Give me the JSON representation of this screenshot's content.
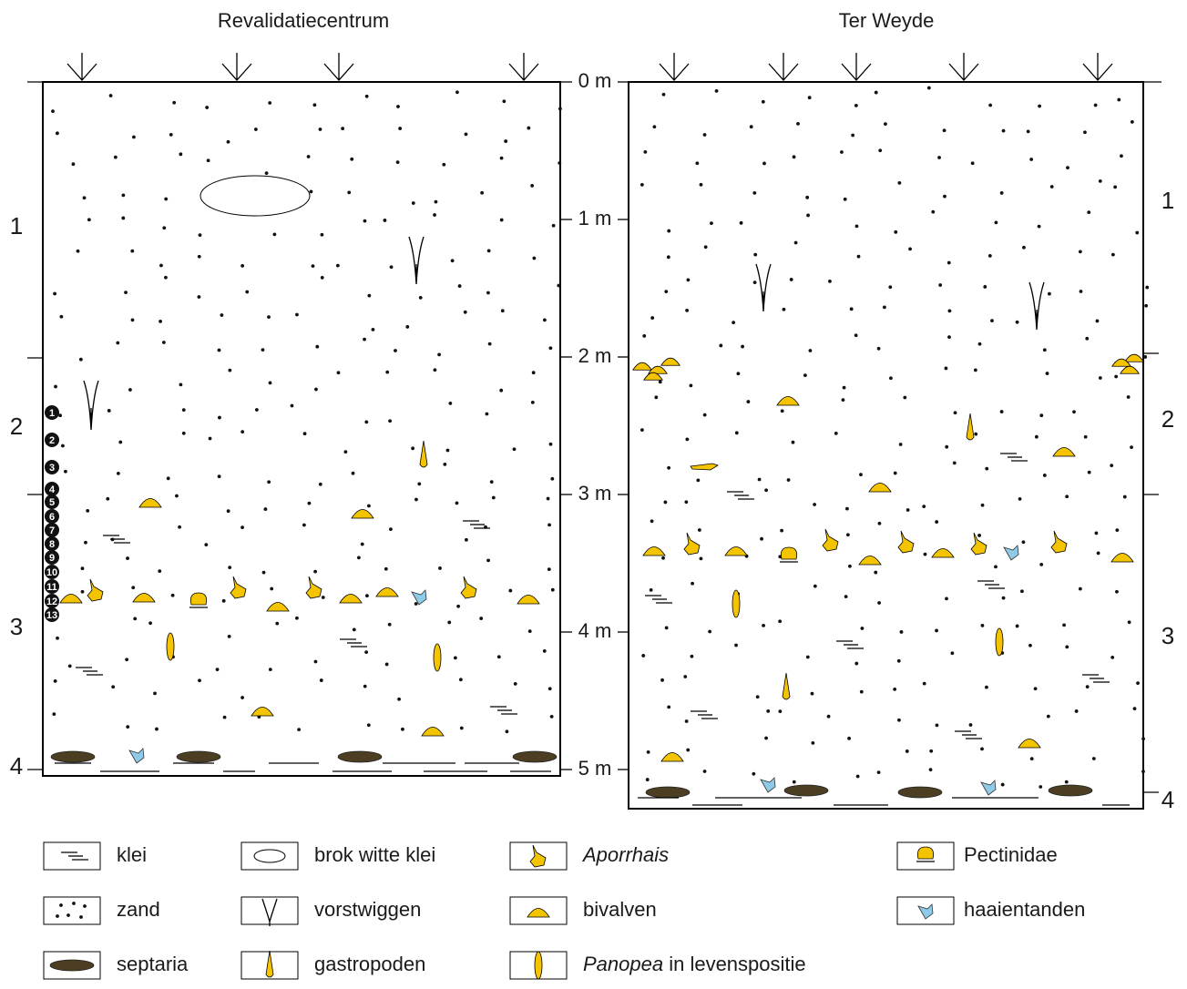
{
  "columns": [
    {
      "title": "Revalidatiecentrum",
      "layers": [
        "1",
        "2",
        "3",
        "4"
      ],
      "samples": [
        "1",
        "2",
        "3",
        "4",
        "5",
        "6",
        "7",
        "8",
        "9",
        "10",
        "11",
        "12",
        "13"
      ]
    },
    {
      "title": "Ter Weyde",
      "layers": [
        "1",
        "2",
        "3",
        "4"
      ]
    }
  ],
  "depth_scale": [
    "0 m",
    "1 m",
    "2 m",
    "3 m",
    "4 m",
    "5 m"
  ],
  "legend": [
    {
      "text": "klei"
    },
    {
      "text": "brok witte klei"
    },
    {
      "italic": "Aporrhais"
    },
    {
      "text": "Pectinidae"
    },
    {
      "text": "zand"
    },
    {
      "text": "vorstwiggen"
    },
    {
      "text": "bivalven"
    },
    {
      "text": "haaientanden"
    },
    {
      "text": "septaria"
    },
    {
      "text": "gastropoden"
    },
    {
      "italic": "Panopea",
      "text": " in levenspositie"
    }
  ]
}
